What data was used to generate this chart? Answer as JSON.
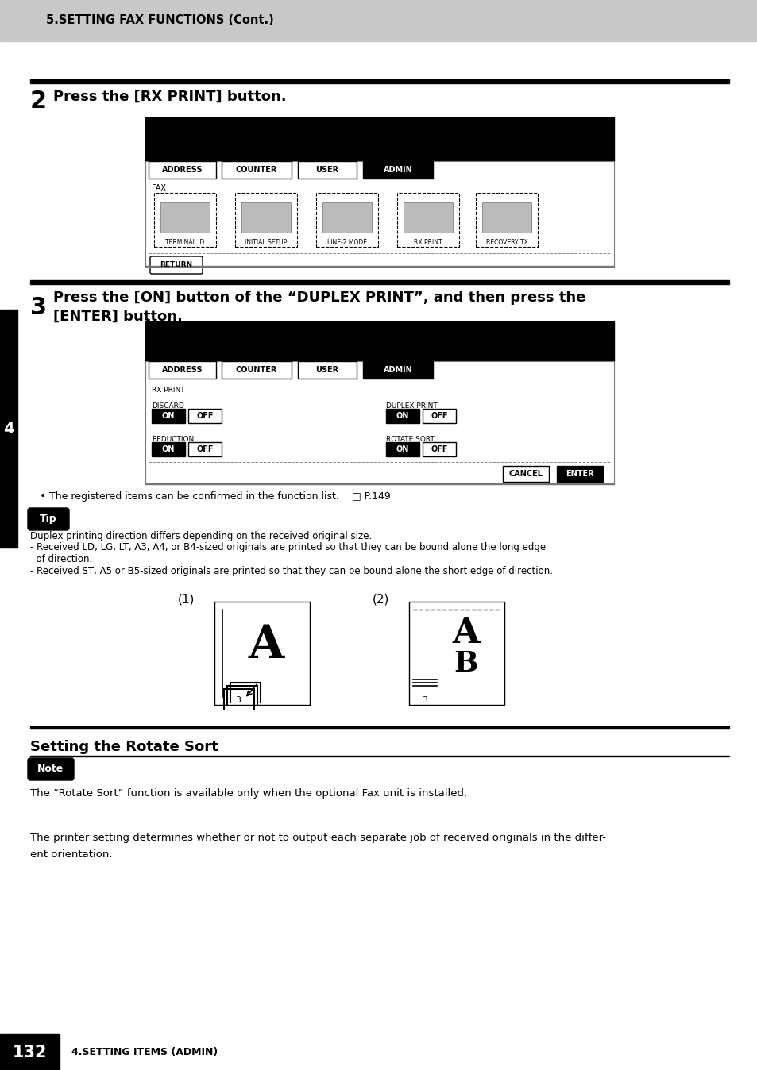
{
  "page_bg": "#ffffff",
  "header_bg": "#c8c8c8",
  "header_text": "5.SETTING FAX FUNCTIONS (Cont.)",
  "step2_label": "2",
  "step2_text": "Press the [RX PRINT] button.",
  "step3_label": "3",
  "step3_text_line1": "Press the [ON] button of the “DUPLEX PRINT”, and then press the",
  "step3_text_line2": "[ENTER] button.",
  "tabs": [
    "ADDRESS",
    "COUNTER",
    "USER",
    "ADMIN"
  ],
  "screen1_icons": [
    "TERMINAL ID",
    "INITIAL SETUP",
    "LINE-2 MODE",
    "RX PRINT",
    "RECOVERY TX"
  ],
  "bullet_text": "The registered items can be confirmed in the function list.    □ P.149",
  "tip_label": "Tip",
  "tip_text_line1": "Duplex printing direction differs depending on the received original size.",
  "tip_text_line2": "- Received LD, LG, LT, A3, A4, or B4-sized originals are printed so that they can be bound alone the long edge",
  "tip_text_line3": "  of direction.",
  "tip_text_line4": "- Received ST, A5 or B5-sized originals are printed so that they can be bound alone the short edge of direction.",
  "fig1_label": "(1)",
  "fig2_label": "(2)",
  "section_title": "Setting the Rotate Sort",
  "note_label": "Note",
  "note_text": "The “Rotate Sort” function is available only when the optional Fax unit is installed.",
  "body_text_line1": "The printer setting determines whether or not to output each separate job of received originals in the differ-",
  "body_text_line2": "ent orientation.",
  "footer_page": "132",
  "footer_text": "4.SETTING ITEMS (ADMIN)",
  "sidebar_label": "4"
}
